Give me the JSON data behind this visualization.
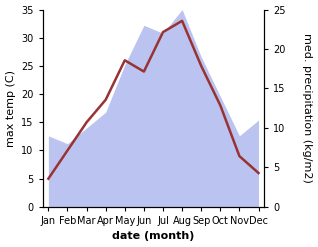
{
  "months": [
    "Jan",
    "Feb",
    "Mar",
    "Apr",
    "May",
    "Jun",
    "Jul",
    "Aug",
    "Sep",
    "Oct",
    "Nov",
    "Dec"
  ],
  "temperature": [
    5,
    10,
    15,
    19,
    26,
    24,
    31,
    33,
    25,
    18,
    9,
    6
  ],
  "precipitation": [
    9,
    8,
    10,
    12,
    18,
    23,
    22,
    25,
    19,
    14,
    9,
    11
  ],
  "temp_color": "#993333",
  "precip_fill_color": "#bbc4f0",
  "ylim_left": [
    0,
    35
  ],
  "ylim_right": [
    0,
    25
  ],
  "yticks_left": [
    0,
    5,
    10,
    15,
    20,
    25,
    30,
    35
  ],
  "yticks_right": [
    0,
    5,
    10,
    15,
    20,
    25
  ],
  "xlabel": "date (month)",
  "ylabel_left": "max temp (C)",
  "ylabel_right": "med. precipitation (kg/m2)",
  "label_fontsize": 8,
  "tick_fontsize": 7
}
